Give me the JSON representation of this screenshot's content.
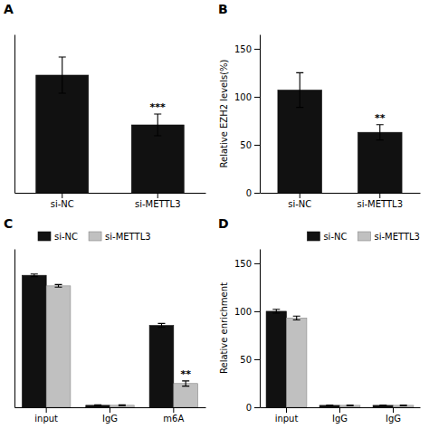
{
  "chart_data": [
    {
      "type": "bar",
      "title": "A",
      "categories": [
        "si-NC",
        "si-METTL3"
      ],
      "values": [
        130,
        75
      ],
      "errors": [
        20,
        12
      ],
      "color": "#111111",
      "ylim": [
        0,
        175
      ],
      "yticks": [],
      "grid": false,
      "tick_labels": "x",
      "annotations": [
        {
          "text": "***",
          "x": "si-METTL3"
        }
      ]
    },
    {
      "type": "bar",
      "title": "B",
      "y_label": "Relative EZH2 levels(%)",
      "categories": [
        "si-NC",
        "si-METTL3"
      ],
      "values": [
        107,
        63
      ],
      "errors": [
        18,
        8
      ],
      "color": "#111111",
      "ylim": [
        0,
        165
      ],
      "yticks": [
        0,
        50,
        100,
        150
      ],
      "grid": false,
      "annotations": [
        {
          "text": "**",
          "x": "si-METTL3"
        }
      ]
    },
    {
      "type": "bar",
      "title": "C",
      "categories": [
        "input",
        "IgG",
        "m6A"
      ],
      "series": [
        {
          "name": "si-NC",
          "color": "#111111",
          "values": [
            100,
            1.5,
            62
          ],
          "errors": [
            1,
            0.3,
            1.5
          ]
        },
        {
          "name": "si-METTL3",
          "color": "#c0c0c0",
          "values": [
            92,
            1.5,
            18
          ],
          "errors": [
            1,
            0.3,
            2
          ]
        }
      ],
      "ylim": [
        0,
        120
      ],
      "yticks": [],
      "grid": false,
      "tick_labels": "x",
      "legend": "upper left",
      "annotations": [
        {
          "text": "**",
          "x": "m6A",
          "series": "si-METTL3"
        }
      ]
    },
    {
      "type": "bar",
      "title": "D",
      "y_label": "Relative enrichment",
      "categories": [
        "input",
        "IgG",
        "IgG"
      ],
      "series": [
        {
          "name": "si-NC",
          "color": "#111111",
          "values": [
            100,
            2,
            2
          ],
          "errors": [
            2,
            0.3,
            0.3
          ]
        },
        {
          "name": "si-METTL3",
          "color": "#c0c0c0",
          "values": [
            93,
            2,
            2
          ],
          "errors": [
            2,
            0.3,
            0.3
          ]
        }
      ],
      "ylim": [
        0,
        165
      ],
      "yticks": [
        0,
        50,
        100,
        150
      ],
      "grid": false,
      "legend": "upper right"
    }
  ]
}
